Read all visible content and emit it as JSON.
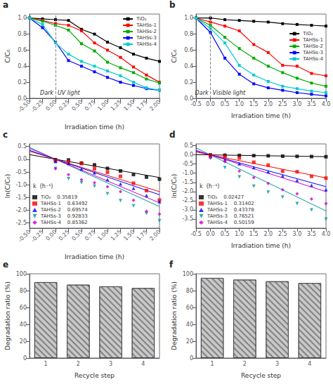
{
  "chart_data": [
    {
      "type": "line",
      "title": "a",
      "xlabel": "Irradiation time (h)",
      "ylabel": "C/C₀",
      "x": [
        -0.5,
        -0.25,
        0.0,
        0.25,
        0.5,
        0.75,
        1.0,
        1.25,
        1.5,
        1.75,
        2.0
      ],
      "series": [
        {
          "name": "TiO₂",
          "color": "#000000",
          "marker": "square",
          "values": [
            1.0,
            0.99,
            0.98,
            0.97,
            0.86,
            0.8,
            0.7,
            0.63,
            0.55,
            0.5,
            0.46
          ]
        },
        {
          "name": "TAHSs-1",
          "color": "#ff0000",
          "marker": "square",
          "values": [
            1.0,
            0.97,
            0.93,
            0.91,
            0.84,
            0.69,
            0.6,
            0.51,
            0.39,
            0.29,
            0.2
          ]
        },
        {
          "name": "TAHSs-2",
          "color": "#00aa00",
          "marker": "square",
          "values": [
            1.0,
            0.96,
            0.91,
            0.85,
            0.68,
            0.59,
            0.45,
            0.38,
            0.32,
            0.24,
            0.19
          ]
        },
        {
          "name": "TAHSs-3",
          "color": "#0000ff",
          "marker": "square",
          "values": [
            1.0,
            0.88,
            0.7,
            0.47,
            0.4,
            0.33,
            0.26,
            0.2,
            0.16,
            0.12,
            0.1
          ]
        },
        {
          "name": "TAHSs-4",
          "color": "#00cccc",
          "marker": "square",
          "values": [
            1.0,
            0.92,
            0.69,
            0.55,
            0.46,
            0.4,
            0.34,
            0.28,
            0.2,
            0.13,
            0.1
          ]
        }
      ],
      "xlim": [
        -0.5,
        2.0
      ],
      "ylim": [
        0.0,
        1.05
      ],
      "xticks": [
        {
          "value": -0.5,
          "label": "-0.50"
        },
        -0.25,
        {
          "value": 0.0,
          "label": "0.00"
        },
        0.25,
        {
          "value": 0.5,
          "label": "0.50"
        },
        0.75,
        {
          "value": 1.0,
          "label": "1.00"
        },
        1.25,
        {
          "value": 1.5,
          "label": "1.50"
        },
        1.75,
        {
          "value": 2.0,
          "label": "2.00"
        }
      ],
      "yticks": [
        {
          "value": 0.0,
          "label": "0.0"
        },
        0.2,
        0.4,
        0.6,
        0.8,
        {
          "value": 1.0,
          "label": "1.0"
        }
      ],
      "vline": 0.0,
      "annotations": [
        "Dark",
        "UV light"
      ],
      "legend": "upper right",
      "grid": false
    },
    {
      "type": "line",
      "title": "b",
      "xlabel": "Irradiation time (h)",
      "ylabel": "C/C₀",
      "x": [
        -0.5,
        0.0,
        0.5,
        1.0,
        1.5,
        2.0,
        2.5,
        3.0,
        3.5,
        4.0
      ],
      "series": [
        {
          "name": "TiO₂",
          "color": "#000000",
          "marker": "square",
          "values": [
            1.0,
            1.0,
            0.98,
            0.97,
            0.96,
            0.95,
            0.93,
            0.92,
            0.91,
            0.9
          ]
        },
        {
          "name": "TAHSs-1",
          "color": "#ff0000",
          "marker": "square",
          "values": [
            1.0,
            0.95,
            0.9,
            0.84,
            0.67,
            0.57,
            0.41,
            0.4,
            0.31,
            0.28
          ]
        },
        {
          "name": "TAHSs-2",
          "color": "#00aa00",
          "marker": "square",
          "values": [
            1.0,
            0.91,
            0.76,
            0.62,
            0.5,
            0.4,
            0.32,
            0.25,
            0.19,
            0.15
          ]
        },
        {
          "name": "TAHSs-3",
          "color": "#0000ff",
          "marker": "square",
          "values": [
            1.0,
            0.82,
            0.5,
            0.3,
            0.18,
            0.13,
            0.1,
            0.07,
            0.05,
            0.03
          ]
        },
        {
          "name": "TAHSs-4",
          "color": "#00cccc",
          "marker": "square",
          "values": [
            1.0,
            0.87,
            0.69,
            0.41,
            0.29,
            0.21,
            0.15,
            0.12,
            0.09,
            0.07
          ]
        }
      ],
      "xlim": [
        -0.5,
        4.0
      ],
      "ylim": [
        0.0,
        1.05
      ],
      "xticks": [
        -0.5,
        {
          "value": 0.0,
          "label": "0.0"
        },
        0.5,
        {
          "value": 1.0,
          "label": "1.0"
        },
        1.5,
        {
          "value": 2.0,
          "label": "2.0"
        },
        2.5,
        {
          "value": 3.0,
          "label": "3.0"
        },
        3.5,
        {
          "value": 4.0,
          "label": "4.0"
        }
      ],
      "yticks": [
        {
          "value": 0.0,
          "label": "0.0"
        },
        0.2,
        0.4,
        0.6,
        0.8,
        {
          "value": 1.0,
          "label": "1.0"
        }
      ],
      "vline": 0.0,
      "annotations": [
        "Dark",
        "Visible light"
      ],
      "legend": "center right",
      "grid": false
    },
    {
      "type": "scatter",
      "title": "c",
      "xlabel": "Irradiation time (h)",
      "ylabel": "ln(C/C₀)",
      "x": [
        0.0,
        0.25,
        0.5,
        0.75,
        1.0,
        1.25,
        1.5,
        1.75,
        2.0
      ],
      "series": [
        {
          "name": "TiO₂    0.35819",
          "color": "#000000",
          "marker": "square",
          "values": [
            -0.02,
            -0.03,
            -0.15,
            -0.22,
            -0.36,
            -0.46,
            -0.6,
            -0.7,
            -0.78
          ],
          "fit": {
            "x": [
              -0.5,
              2.0
            ],
            "values": [
              0.179095,
              -0.71638
            ]
          }
        },
        {
          "name": "TAHSs-1    0.63492",
          "color": "#ff0000",
          "marker": "square",
          "values": [
            -0.07,
            -0.1,
            -0.17,
            -0.37,
            -0.51,
            -0.67,
            -0.94,
            -1.23,
            -1.6
          ],
          "fit": {
            "x": [
              -0.5,
              2.0
            ],
            "values": [
              0.31746,
              -1.26984
            ]
          }
        },
        {
          "name": "TAHSs-2    0.69574",
          "color": "#0000ff",
          "marker": "triangle-up",
          "values": [
            -0.09,
            -0.16,
            -0.38,
            -0.53,
            -0.8,
            -0.97,
            -1.14,
            -1.42,
            -1.66
          ],
          "fit": {
            "x": [
              -0.5,
              2.0
            ],
            "values": [
              0.34787,
              -1.39148
            ]
          }
        },
        {
          "name": "TAHSs-3    0.92833",
          "color": "#009999",
          "marker": "triangle-down",
          "values": [
            -0.36,
            -0.76,
            -0.92,
            -1.06,
            -1.35,
            -1.62,
            -1.83,
            -2.12,
            -2.41
          ],
          "fit": {
            "x": [
              -0.5,
              2.0
            ],
            "values": [
              0.464165,
              -1.85666
            ]
          }
        },
        {
          "name": "TAHSs-4    0.85362",
          "color": "#cc00cc",
          "marker": "diamond",
          "values": [
            -0.37,
            -0.6,
            -0.8,
            -0.92,
            -1.08,
            -1.27,
            -1.61,
            -2.04,
            -2.15
          ],
          "fit": {
            "x": [
              -0.5,
              2.0
            ],
            "values": [
              0.42681,
              -1.70724
            ]
          }
        }
      ],
      "xlim": [
        -0.5,
        2.0
      ],
      "ylim": [
        -2.7,
        0.6
      ],
      "xticks": [
        {
          "value": -0.5,
          "label": "-0.50"
        },
        -0.25,
        {
          "value": 0.0,
          "label": "0.00"
        },
        0.25,
        {
          "value": 0.5,
          "label": "0.50"
        },
        0.75,
        {
          "value": 1.0,
          "label": "1.00"
        },
        1.25,
        {
          "value": 1.5,
          "label": "1.50"
        },
        1.75,
        {
          "value": 2.0,
          "label": "2.00"
        }
      ],
      "yticks": [
        0.5,
        {
          "value": 0.0,
          "label": "0.0"
        },
        -0.5,
        {
          "value": -1.0,
          "label": "-1.0"
        },
        -1.5,
        {
          "value": -2.0,
          "label": "-2.0"
        },
        -2.5
      ],
      "legend": "lower left",
      "legend_title": "k  (h⁻¹)",
      "grid": false
    },
    {
      "type": "scatter",
      "title": "d",
      "xlabel": "Irradiation time (h)",
      "ylabel": "ln(C/C₀)",
      "x": [
        0.0,
        0.5,
        1.0,
        1.5,
        2.0,
        2.5,
        3.0,
        3.5,
        4.0
      ],
      "series": [
        {
          "name": "TiO₂    0.02427",
          "color": "#000000",
          "marker": "square",
          "values": [
            0.0,
            -0.02,
            -0.03,
            -0.04,
            -0.05,
            -0.07,
            -0.08,
            -0.09,
            -0.1
          ],
          "fit": {
            "x": [
              -0.5,
              4.0
            ],
            "values": [
              0.012135,
              -0.09708
            ]
          }
        },
        {
          "name": "TAHSs-1    0.31402",
          "color": "#ff0000",
          "marker": "square",
          "values": [
            -0.05,
            -0.1,
            -0.17,
            -0.4,
            -0.56,
            -0.89,
            -0.92,
            -1.17,
            -1.27
          ],
          "fit": {
            "x": [
              -0.5,
              4.0
            ],
            "values": [
              0.15701,
              -1.25608
            ]
          }
        },
        {
          "name": "TAHSs-2    0.43378",
          "color": "#0000ff",
          "marker": "triangle-up",
          "values": [
            -0.09,
            -0.27,
            -0.48,
            -0.69,
            -0.92,
            -1.14,
            -1.39,
            -1.66,
            -1.9
          ],
          "fit": {
            "x": [
              -0.5,
              4.0
            ],
            "values": [
              0.21689,
              -1.73512
            ]
          }
        },
        {
          "name": "TAHSs-3    0.76521",
          "color": "#009999",
          "marker": "triangle-down",
          "values": [
            -0.2,
            -0.69,
            -1.2,
            -1.71,
            -2.04,
            -2.3,
            -2.66,
            -3.0,
            -3.51
          ],
          "fit": {
            "x": [
              -0.5,
              4.0
            ],
            "values": [
              0.382605,
              -3.06084
            ]
          }
        },
        {
          "name": "TAHSs-4    0.50159",
          "color": "#cc00cc",
          "marker": "diamond",
          "values": [
            -0.14,
            -0.37,
            -0.89,
            -1.24,
            -1.56,
            -1.9,
            -2.12,
            -2.41,
            -2.66
          ],
          "fit": {
            "x": [
              -0.5,
              4.0
            ],
            "values": [
              0.250795,
              -2.00636
            ]
          }
        }
      ],
      "xlim": [
        -0.5,
        4.0
      ],
      "ylim": [
        -4.0,
        0.6
      ],
      "xticks": [
        -0.5,
        {
          "value": 0.0,
          "label": "0.0"
        },
        0.5,
        {
          "value": 1.0,
          "label": "1.0"
        },
        1.5,
        {
          "value": 2.0,
          "label": "2.0"
        },
        2.5,
        {
          "value": 3.0,
          "label": "3.0"
        },
        3.5,
        {
          "value": 4.0,
          "label": "4.0"
        }
      ],
      "yticks": [
        0.5,
        {
          "value": 0.0,
          "label": "0.0"
        },
        -0.5,
        {
          "value": -1.0,
          "label": "-1.0"
        },
        -1.5,
        {
          "value": -2.0,
          "label": "-2.0"
        },
        -2.5,
        {
          "value": -3.0,
          "label": "-3.0"
        },
        -3.5
      ],
      "legend": "lower left",
      "legend_title": "k  (h⁻¹)",
      "grid": false
    },
    {
      "type": "bar",
      "title": "e",
      "xlabel": "Recycle step",
      "ylabel": "Degradation ratio (%)",
      "categories": [
        "1",
        "2",
        "3",
        "4"
      ],
      "values": [
        90,
        87,
        85,
        83
      ],
      "color": "#c8c8c8",
      "ylim": [
        0,
        100
      ],
      "yticks": [
        0,
        20,
        40,
        60,
        80,
        100
      ],
      "grid": false
    },
    {
      "type": "bar",
      "title": "f",
      "xlabel": "Recycle step",
      "ylabel": "Degradation ratio (%)",
      "categories": [
        "1",
        "2",
        "3",
        "4"
      ],
      "values": [
        95,
        93,
        91,
        89
      ],
      "color": "#c8c8c8",
      "ylim": [
        0,
        100
      ],
      "yticks": [
        0,
        20,
        40,
        60,
        80,
        100
      ],
      "grid": false
    }
  ]
}
